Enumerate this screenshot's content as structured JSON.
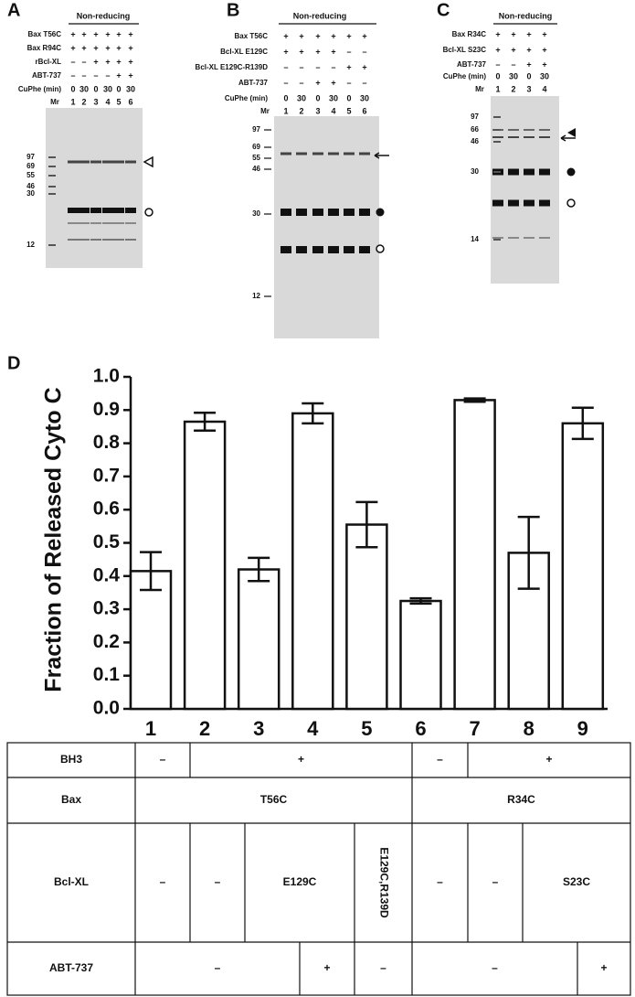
{
  "panels": [
    {
      "letter": "A",
      "header": "Non-reducing",
      "rows": [
        {
          "label": "Bax T56C",
          "values": [
            "+",
            "+",
            "+",
            "+",
            "+",
            "+"
          ]
        },
        {
          "label": "Bax R94C",
          "values": [
            "+",
            "+",
            "+",
            "+",
            "+",
            "+"
          ]
        },
        {
          "label": "rBcl-XL",
          "values": [
            "–",
            "–",
            "+",
            "+",
            "+",
            "+"
          ]
        },
        {
          "label": "ABT-737",
          "values": [
            "–",
            "–",
            "–",
            "–",
            "+",
            "+"
          ]
        },
        {
          "label": "CuPhe (min)",
          "values": [
            "0",
            "30",
            "0",
            "30",
            "0",
            "30"
          ]
        }
      ],
      "lane_label": "Mr",
      "lanes": [
        "1",
        "2",
        "3",
        "4",
        "5",
        "6"
      ],
      "markers": [
        97,
        69,
        55,
        46,
        30,
        12
      ]
    },
    {
      "letter": "B",
      "header": "Non-reducing",
      "rows": [
        {
          "label": "Bax T56C",
          "values": [
            "+",
            "+",
            "+",
            "+",
            "+",
            "+"
          ]
        },
        {
          "label": "Bcl-XL E129C",
          "values": [
            "+",
            "+",
            "+",
            "+",
            "–",
            "–"
          ]
        },
        {
          "label": "Bcl-XL E129C-R139D",
          "values": [
            "–",
            "–",
            "–",
            "–",
            "+",
            "+"
          ]
        },
        {
          "label": "ABT-737",
          "values": [
            "–",
            "–",
            "+",
            "+",
            "–",
            "–"
          ]
        },
        {
          "label": "CuPhe (min)",
          "values": [
            "0",
            "30",
            "0",
            "30",
            "0",
            "30"
          ]
        }
      ],
      "lane_label": "Mr",
      "lanes": [
        "1",
        "2",
        "3",
        "4",
        "5",
        "6"
      ],
      "markers": [
        97,
        69,
        55,
        46,
        30,
        12
      ]
    },
    {
      "letter": "C",
      "header": "Non-reducing",
      "rows": [
        {
          "label": "Bax R34C",
          "values": [
            "+",
            "+",
            "+",
            "+"
          ]
        },
        {
          "label": "Bcl-XL S23C",
          "values": [
            "+",
            "+",
            "+",
            "+"
          ]
        },
        {
          "label": "ABT-737",
          "values": [
            "–",
            "–",
            "+",
            "+"
          ]
        },
        {
          "label": "CuPhe (min)",
          "values": [
            "0",
            "30",
            "0",
            "30"
          ]
        }
      ],
      "lane_label": "Mr",
      "lanes": [
        "1",
        "2",
        "3",
        "4"
      ],
      "markers": [
        97,
        66,
        46,
        30,
        14
      ]
    }
  ],
  "chart_data": {
    "type": "bar",
    "letter": "D",
    "ylabel": "Fraction of Released Cyto C",
    "categories": [
      "1",
      "2",
      "3",
      "4",
      "5",
      "6",
      "7",
      "8",
      "9"
    ],
    "values": [
      0.415,
      0.865,
      0.42,
      0.89,
      0.555,
      0.325,
      0.93,
      0.47,
      0.86
    ],
    "errors": [
      0.057,
      0.027,
      0.035,
      0.03,
      0.068,
      0.008,
      0.005,
      0.108,
      0.047
    ],
    "color": "#ffffff",
    "ylim": [
      0,
      1
    ],
    "yticks": [
      {
        "value": 0,
        "label": "0.0"
      },
      {
        "value": 0.1,
        "label": "0.1"
      },
      {
        "value": 0.2,
        "label": "0.2"
      },
      {
        "value": 0.3,
        "label": "0.3"
      },
      {
        "value": 0.4,
        "label": "0.4"
      },
      {
        "value": 0.5,
        "label": "0.5"
      },
      {
        "value": 0.6,
        "label": "0.6"
      },
      {
        "value": 0.7,
        "label": "0.7"
      },
      {
        "value": 0.8,
        "label": "0.8"
      },
      {
        "value": 0.9,
        "label": "0.9"
      },
      {
        "value": 1,
        "label": "1.0"
      }
    ]
  },
  "table": {
    "rows": [
      {
        "label": "BH3",
        "cells": [
          "–",
          "+",
          "–",
          "+"
        ]
      },
      {
        "label": "Bax",
        "cells": [
          "T56C",
          "R34C"
        ]
      },
      {
        "label": "Bcl-XL",
        "cells": [
          "–",
          "–",
          "E129C",
          "E129C,R139D",
          "–",
          "–",
          "S23C"
        ]
      },
      {
        "label": "ABT-737",
        "cells": [
          "–",
          "+",
          "–",
          "–",
          "+"
        ]
      }
    ]
  }
}
